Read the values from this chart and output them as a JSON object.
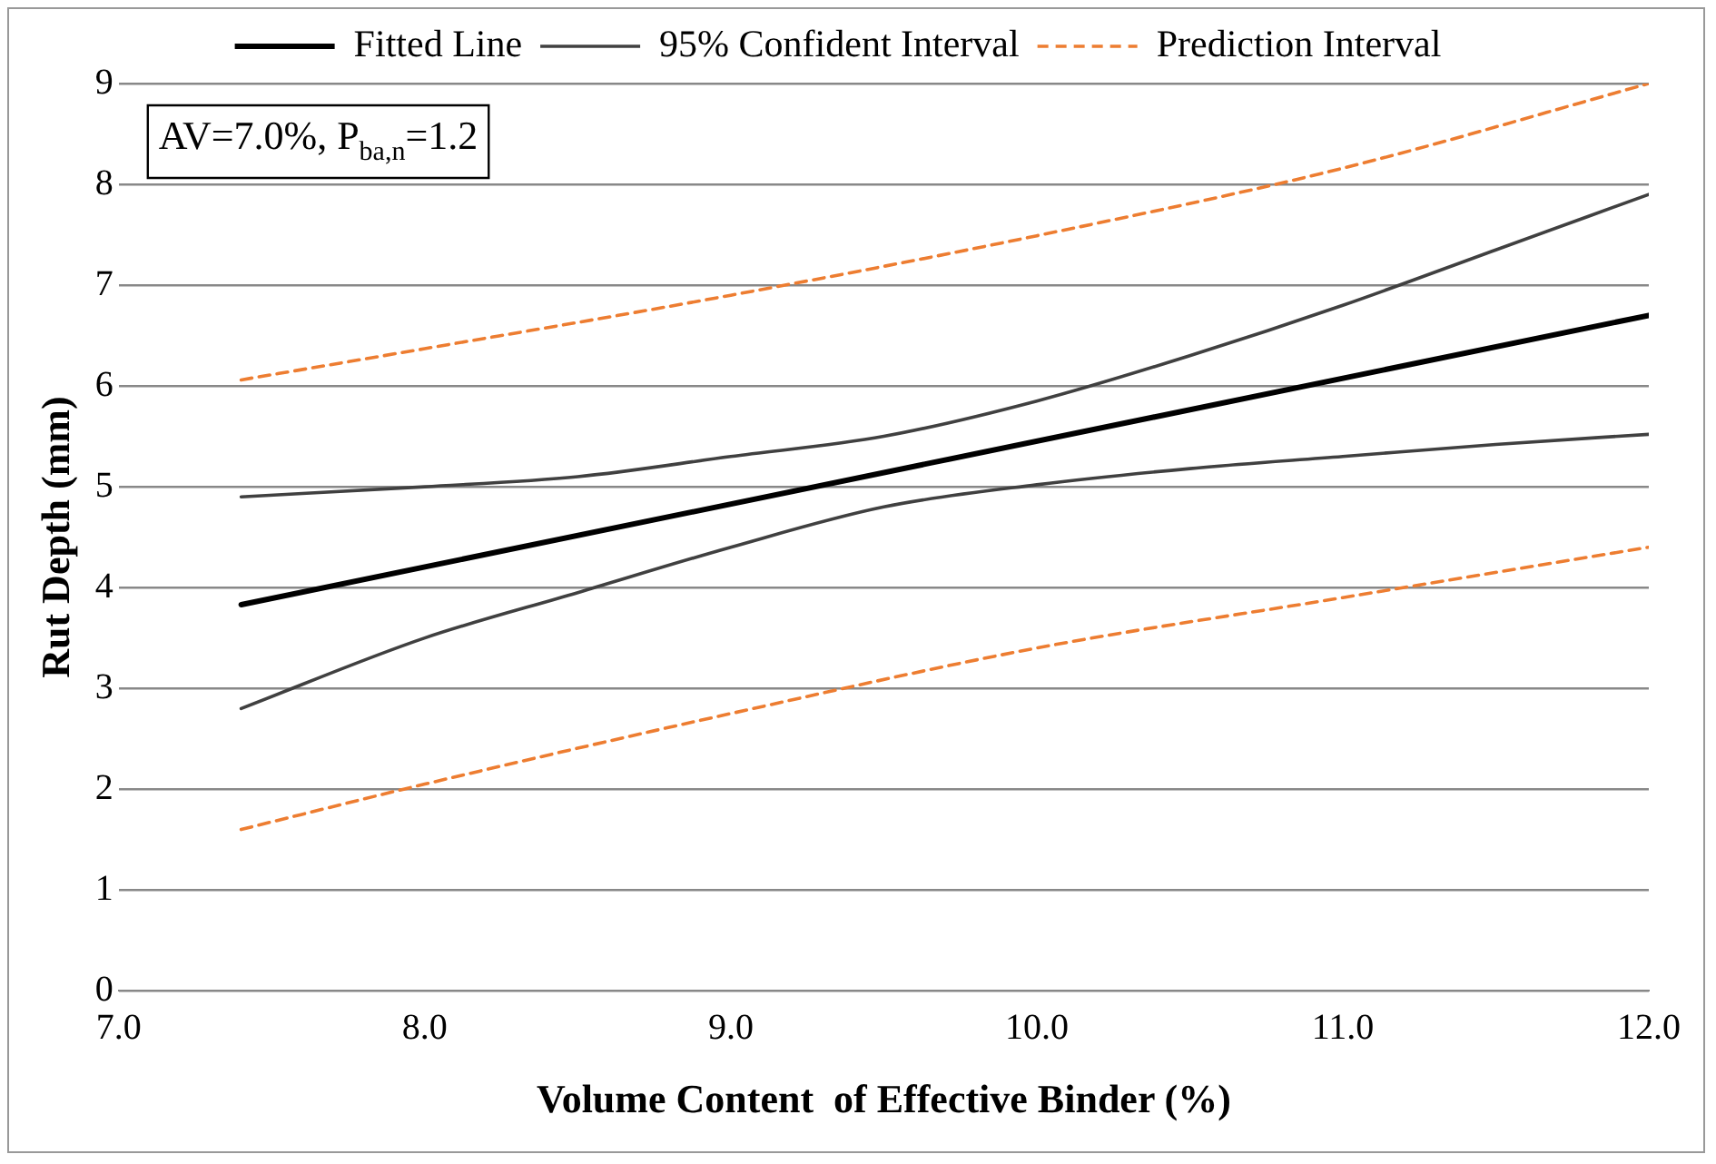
{
  "chart_data": {
    "type": "line",
    "xlabel": "Volume Content  of Effective Binder (%)",
    "ylabel": "Rut Depth (mm)",
    "xlim": [
      7,
      12
    ],
    "xticks": [
      {
        "value": 7,
        "label": "7.0"
      },
      {
        "value": 8,
        "label": "8.0"
      },
      {
        "value": 9,
        "label": "9.0"
      },
      {
        "value": 10,
        "label": "10.0"
      },
      {
        "value": 11,
        "label": "11.0"
      },
      {
        "value": 12,
        "label": "12.0"
      }
    ],
    "ylim": [
      0,
      9
    ],
    "yticks": [
      0,
      1,
      2,
      3,
      4,
      5,
      6,
      7,
      8,
      9
    ],
    "grid": "y",
    "legend": "top",
    "marker": "none",
    "annotations": [
      "AV=7.0%, P$_{ba,n}$=1.2"
    ],
    "series": [
      {
        "name": "Fitted Line",
        "color": "#000000",
        "line_style": "solid",
        "x": [
          7.4,
          12
        ],
        "values": [
          3.83,
          6.7
        ]
      },
      {
        "name": "95% Confident Interval",
        "color": "#404040",
        "line_style": "solid",
        "x": [
          7.4,
          8,
          8.5,
          9,
          9.5,
          10,
          10.5,
          11,
          11.5,
          12
        ],
        "values": [
          4.9,
          5.0,
          5.1,
          5.3,
          5.5,
          5.85,
          6.3,
          6.8,
          7.35,
          7.9
        ]
      },
      {
        "color": "#404040",
        "line_style": "solid",
        "x": [
          7.4,
          8,
          8.5,
          9,
          9.5,
          10,
          10.5,
          11,
          11.5,
          12
        ],
        "values": [
          2.8,
          3.5,
          3.95,
          4.4,
          4.8,
          5.02,
          5.18,
          5.3,
          5.42,
          5.52
        ]
      },
      {
        "name": "Prediction Interval",
        "color": "#ed7d31",
        "line_style": "dashed",
        "x": [
          7.4,
          8,
          9,
          10,
          11,
          12
        ],
        "values": [
          6.06,
          6.37,
          6.9,
          7.49,
          8.16,
          9.0
        ]
      },
      {
        "color": "#ed7d31",
        "line_style": "dashed",
        "x": [
          7.4,
          8,
          9,
          10,
          11,
          12
        ],
        "values": [
          1.6,
          2.05,
          2.75,
          3.4,
          3.9,
          4.4
        ]
      }
    ]
  }
}
